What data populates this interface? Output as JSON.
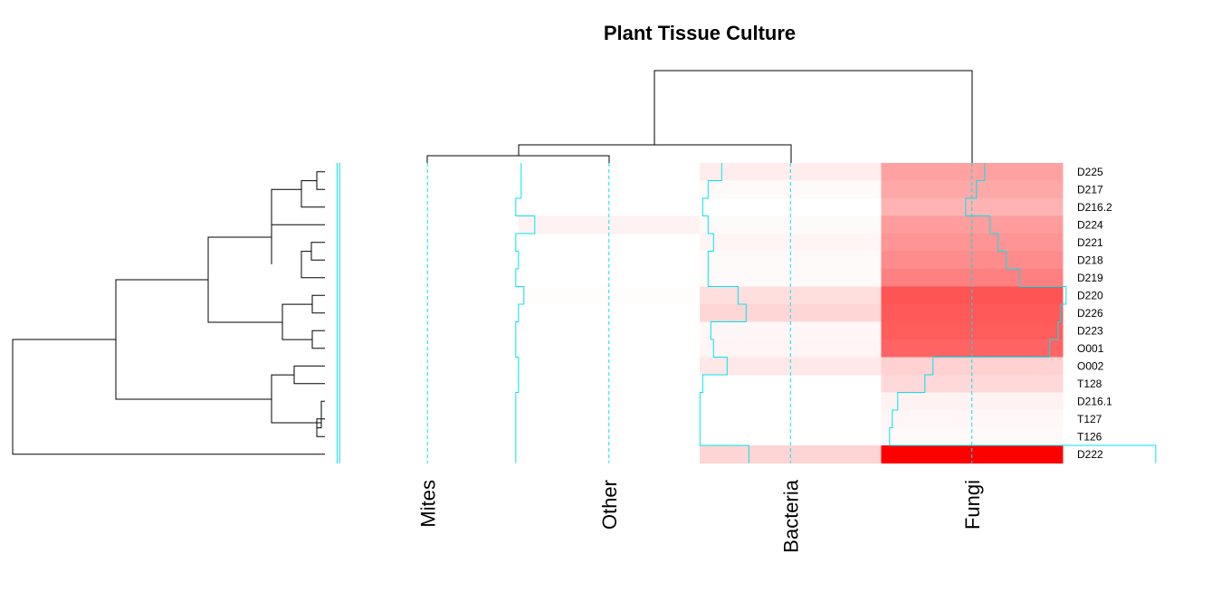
{
  "chart_data": {
    "type": "heatmap",
    "title": "Plant Tissue Culture",
    "columns": [
      "Mites",
      "Other",
      "Bacteria",
      "Fungi"
    ],
    "rows": [
      "D225",
      "D217",
      "D216.2",
      "D224",
      "D221",
      "D218",
      "D219",
      "D220",
      "D226",
      "D223",
      "O001",
      "O002",
      "T128",
      "D216.1",
      "T127",
      "T126",
      "D222"
    ],
    "values": [
      [
        0.0,
        0.0,
        0.07,
        0.37
      ],
      [
        0.0,
        0.0,
        0.02,
        0.34
      ],
      [
        0.0,
        -0.02,
        0.0,
        0.3
      ],
      [
        0.0,
        0.05,
        0.02,
        0.39
      ],
      [
        0.0,
        -0.02,
        0.04,
        0.42
      ],
      [
        0.0,
        -0.01,
        0.02,
        0.45
      ],
      [
        0.0,
        -0.02,
        0.02,
        0.5
      ],
      [
        0.0,
        0.01,
        0.13,
        0.67
      ],
      [
        0.0,
        -0.01,
        0.16,
        0.65
      ],
      [
        0.0,
        -0.02,
        0.03,
        0.64
      ],
      [
        0.0,
        -0.02,
        0.04,
        0.61
      ],
      [
        0.0,
        -0.01,
        0.09,
        0.18
      ],
      [
        0.0,
        -0.01,
        0.0,
        0.15
      ],
      [
        0.0,
        -0.02,
        -0.01,
        0.05
      ],
      [
        0.0,
        -0.02,
        -0.01,
        0.03
      ],
      [
        0.0,
        -0.02,
        -0.01,
        0.02
      ],
      [
        0.0,
        -0.02,
        0.17,
        1.0
      ]
    ],
    "color_scale": {
      "low": "#ffffff",
      "high": "#ff0000",
      "min": 0,
      "max": 1
    },
    "trace_color": "#00e5ee",
    "row_dendrogram": true,
    "column_dendrogram": true,
    "xlabel": "",
    "ylabel": ""
  }
}
